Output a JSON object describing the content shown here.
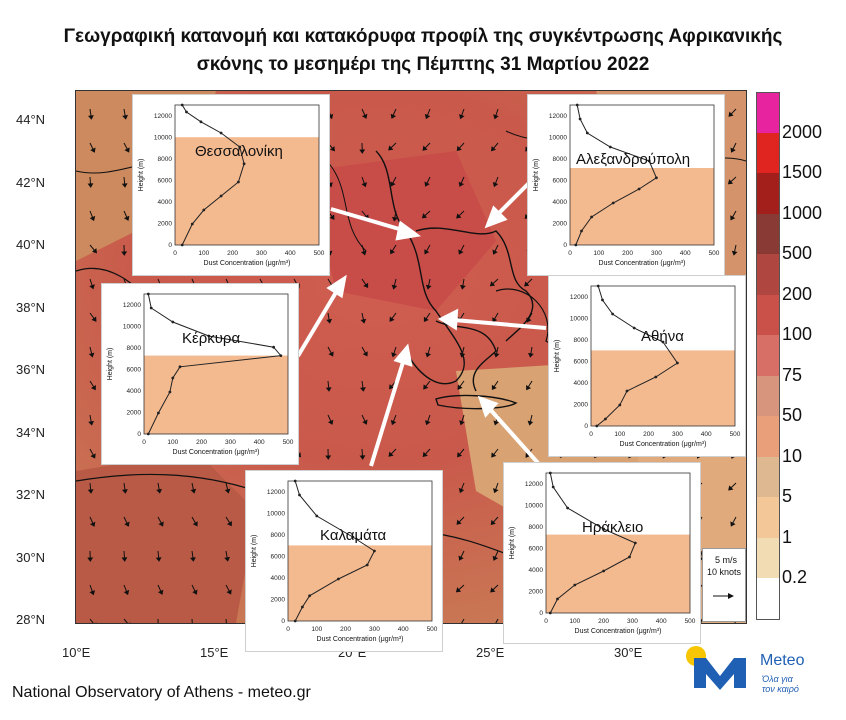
{
  "title": {
    "line1": "Γεωγραφική κατανομή και κατακόρυφα προφίλ της συγκέντρωσης Αφρικανικής",
    "line2": "σκόνης το μεσημέρι της Πέμπτης 31 Μαρτίου 2022"
  },
  "map": {
    "lat_labels": [
      "44°N",
      "42°N",
      "40°N",
      "38°N",
      "36°N",
      "34°N",
      "32°N",
      "30°N",
      "28°N"
    ],
    "lon_labels": [
      "10°E",
      "15°E",
      "20°E",
      "25°E",
      "30°E"
    ]
  },
  "colorbar": {
    "labels": [
      "2000",
      "1500",
      "1000",
      "500",
      "200",
      "100",
      "75",
      "50",
      "10",
      "5",
      "1",
      "0.2"
    ],
    "colors": [
      "#e8239f",
      "#e0241f",
      "#a31f1b",
      "#8a3a34",
      "#b04640",
      "#c9514a",
      "#d86f66",
      "#d7957e",
      "#e9a07a",
      "#deb890",
      "#f3c797",
      "#f1dcb4",
      "#ffffff"
    ]
  },
  "wind_legend": {
    "speed": "5 m/s",
    "knots": "10 knots"
  },
  "insets": [
    {
      "city": "Θεσσαλονίκη"
    },
    {
      "city": "Αλεξανδρούπολη"
    },
    {
      "city": "Κέρκυρα"
    },
    {
      "city": "Αθήνα"
    },
    {
      "city": "Καλαμάτα"
    },
    {
      "city": "Ηράκλειο"
    }
  ],
  "inset_axes": {
    "ylabel": "Height (m)",
    "xlabel": "Dust Concentration (μgr/m³)",
    "x_ticks": [
      "0",
      "100",
      "200",
      "300",
      "400",
      "500"
    ],
    "y_ticks": [
      "0",
      "2000",
      "4000",
      "6000",
      "8000",
      "10000",
      "12000"
    ]
  },
  "footer": "National Observatory of Athens - meteo.gr",
  "brand": {
    "name": "Meteo",
    "tagline1": "Όλα για",
    "tagline2": "τον καιρό"
  }
}
